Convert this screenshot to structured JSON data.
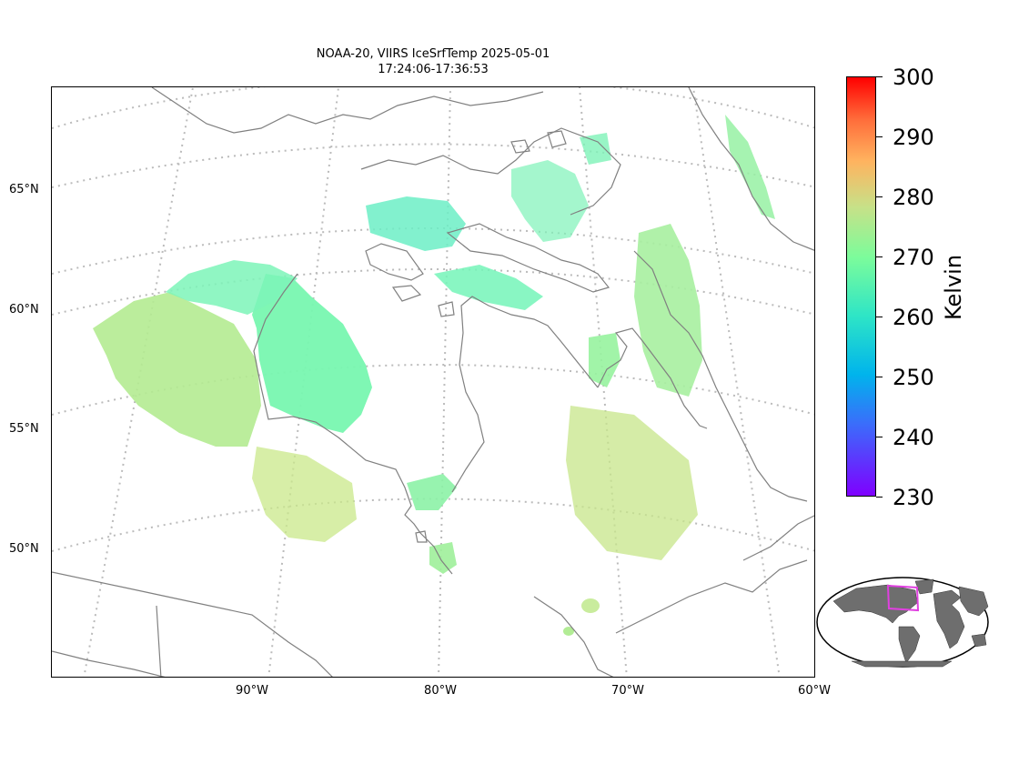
{
  "title": {
    "line1": "NOAA-20, VIIRS IceSrfTemp 2025-05-01",
    "line2": "17:24:06-17:36:53"
  },
  "lat_labels": [
    "65°N",
    "60°N",
    "55°N",
    "50°N"
  ],
  "lon_labels": [
    "90°W",
    "80°W",
    "70°W",
    "60°W"
  ],
  "colorbar": {
    "title": "Kelvin",
    "ticks": [
      "300",
      "290",
      "280",
      "270",
      "260",
      "250",
      "240",
      "230"
    ],
    "range": [
      230,
      300
    ],
    "colormap": "rainbow"
  },
  "colors": {
    "coastline": "#808080",
    "graticule": "#bbbbbb",
    "land_inset": "#6e6e6e",
    "inset_box": "#e040e0"
  },
  "inset": {
    "description_visible": false
  }
}
